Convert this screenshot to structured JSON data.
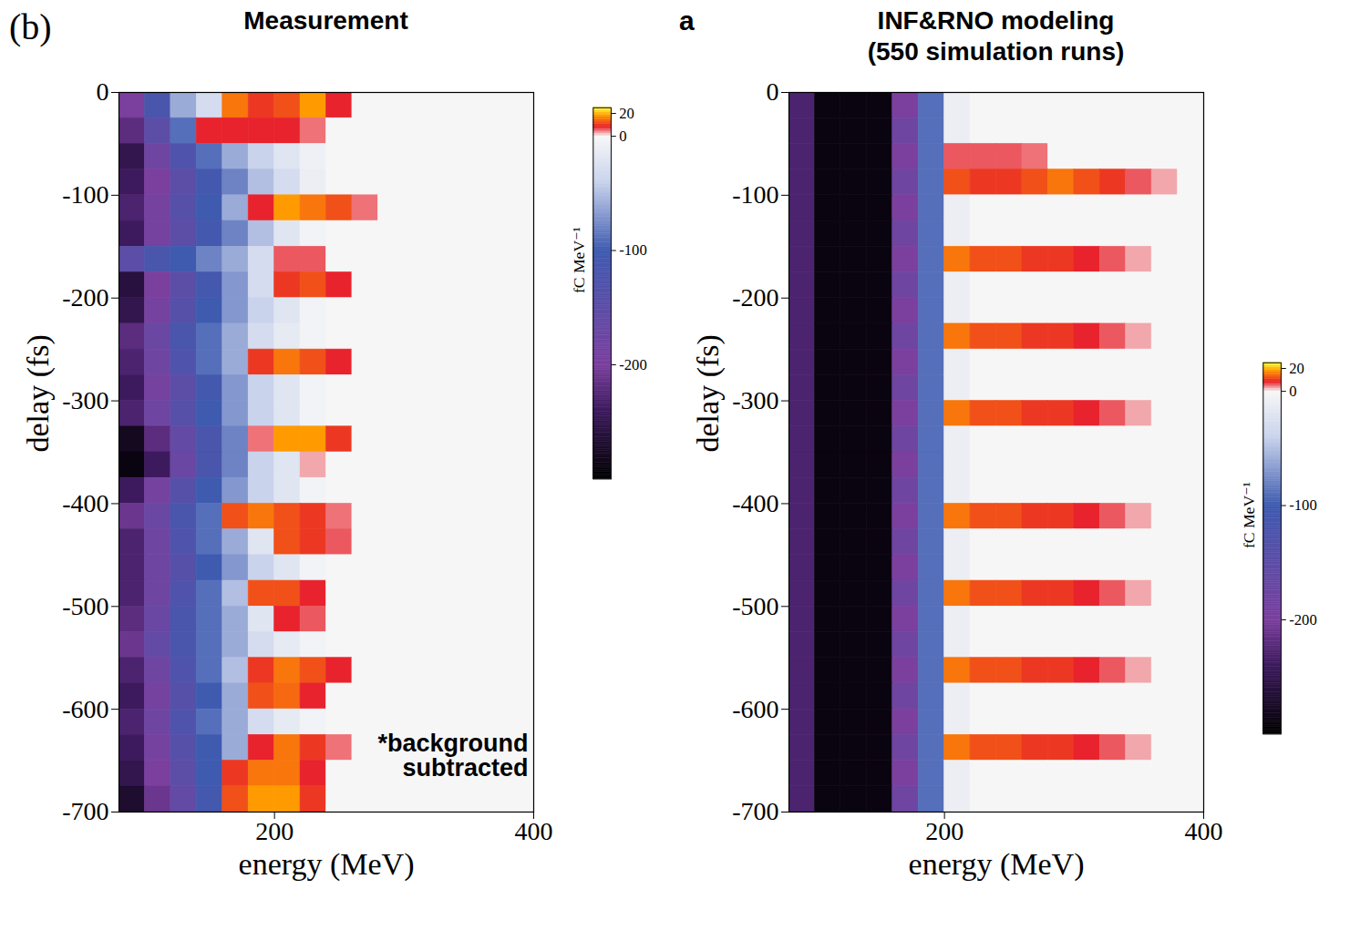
{
  "chart_data": [
    {
      "type": "heatmap",
      "title": "Measurement",
      "panel_label": "(b)",
      "annotation": "*background subtracted",
      "x_label": "energy (MeV)",
      "y_label": "delay (fs)",
      "xlim": [
        80,
        400
      ],
      "xticks": [
        200,
        400
      ],
      "ylim": [
        -700,
        0
      ],
      "yticks": [
        0,
        -100,
        -200,
        -300,
        -400,
        -500,
        -600,
        -700
      ],
      "x_bins": [
        80,
        100,
        120,
        140,
        160,
        180,
        200,
        220,
        240,
        260,
        280,
        300,
        320,
        340,
        360,
        380,
        400
      ],
      "y_bins": [
        0,
        -25,
        -50,
        -75,
        -100,
        -125,
        -150,
        -175,
        -200,
        -225,
        -250,
        -275,
        -300,
        -325,
        -350,
        -375,
        -400,
        -425,
        -450,
        -475,
        -500,
        -525,
        -550,
        -575,
        -600,
        -625,
        -650,
        -675,
        -700
      ],
      "z": [
        [
          -200,
          -120,
          -60,
          -30,
          15,
          10,
          12,
          18,
          8,
          0,
          0,
          0,
          0,
          0,
          0,
          0
        ],
        [
          -220,
          -150,
          -90,
          8,
          8,
          8,
          8,
          5,
          0,
          0,
          0,
          0,
          0,
          0,
          0,
          0
        ],
        [
          -250,
          -180,
          -130,
          -90,
          -60,
          -40,
          -20,
          -8,
          0,
          0,
          0,
          0,
          0,
          0,
          0,
          0
        ],
        [
          -240,
          -200,
          -150,
          -110,
          -80,
          -50,
          -30,
          -10,
          0,
          0,
          0,
          0,
          0,
          0,
          0,
          0
        ],
        [
          -230,
          -190,
          -140,
          -100,
          -60,
          8,
          18,
          15,
          12,
          5,
          0,
          0,
          0,
          0,
          0,
          0
        ],
        [
          -240,
          -190,
          -150,
          -110,
          -80,
          -50,
          -20,
          -5,
          0,
          0,
          0,
          0,
          0,
          0,
          0,
          0
        ],
        [
          -150,
          -120,
          -100,
          -80,
          -60,
          -30,
          6,
          6,
          0,
          0,
          0,
          0,
          0,
          0,
          0,
          0
        ],
        [
          -260,
          -200,
          -150,
          -110,
          -70,
          -30,
          10,
          12,
          8,
          0,
          0,
          0,
          0,
          0,
          0,
          0
        ],
        [
          -250,
          -190,
          -140,
          -100,
          -70,
          -40,
          -20,
          -5,
          0,
          0,
          0,
          0,
          0,
          0,
          0,
          0
        ],
        [
          -220,
          -170,
          -120,
          -90,
          -60,
          -30,
          -15,
          -5,
          0,
          0,
          0,
          0,
          0,
          0,
          0,
          0
        ],
        [
          -230,
          -180,
          -130,
          -90,
          -60,
          10,
          15,
          12,
          8,
          0,
          0,
          0,
          0,
          0,
          0,
          0
        ],
        [
          -240,
          -190,
          -150,
          -110,
          -70,
          -40,
          -20,
          -5,
          0,
          0,
          0,
          0,
          0,
          0,
          0,
          0
        ],
        [
          -230,
          -180,
          -140,
          -100,
          -70,
          -40,
          -20,
          -5,
          0,
          0,
          0,
          0,
          0,
          0,
          0,
          0
        ],
        [
          -280,
          -220,
          -160,
          -120,
          -80,
          5,
          18,
          18,
          10,
          0,
          0,
          0,
          0,
          0,
          0,
          0
        ],
        [
          -290,
          -240,
          -170,
          -120,
          -80,
          -40,
          -20,
          3,
          0,
          0,
          0,
          0,
          0,
          0,
          0,
          0
        ],
        [
          -240,
          -190,
          -140,
          -100,
          -70,
          -40,
          -20,
          -5,
          0,
          0,
          0,
          0,
          0,
          0,
          0,
          0
        ],
        [
          -210,
          -170,
          -120,
          -90,
          12,
          15,
          12,
          10,
          5,
          0,
          0,
          0,
          0,
          0,
          0,
          0
        ],
        [
          -230,
          -180,
          -130,
          -90,
          -60,
          -20,
          12,
          10,
          6,
          0,
          0,
          0,
          0,
          0,
          0,
          0
        ],
        [
          -230,
          -180,
          -140,
          -100,
          -70,
          -40,
          -20,
          -5,
          0,
          0,
          0,
          0,
          0,
          0,
          0,
          0
        ],
        [
          -230,
          -180,
          -130,
          -90,
          -50,
          12,
          12,
          8,
          0,
          0,
          0,
          0,
          0,
          0,
          0,
          0
        ],
        [
          -220,
          -170,
          -120,
          -90,
          -60,
          -20,
          8,
          6,
          0,
          0,
          0,
          0,
          0,
          0,
          0,
          0
        ],
        [
          -210,
          -160,
          -120,
          -90,
          -60,
          -30,
          -15,
          -5,
          0,
          0,
          0,
          0,
          0,
          0,
          0,
          0
        ],
        [
          -230,
          -180,
          -130,
          -90,
          -50,
          10,
          15,
          12,
          8,
          0,
          0,
          0,
          0,
          0,
          0,
          0
        ],
        [
          -240,
          -190,
          -140,
          -100,
          -60,
          12,
          14,
          8,
          0,
          0,
          0,
          0,
          0,
          0,
          0,
          0
        ],
        [
          -230,
          -180,
          -130,
          -90,
          -60,
          -30,
          -15,
          -5,
          0,
          0,
          0,
          0,
          0,
          0,
          0,
          0
        ],
        [
          -240,
          -190,
          -140,
          -100,
          -60,
          8,
          15,
          10,
          5,
          0,
          0,
          0,
          0,
          0,
          0,
          0
        ],
        [
          -250,
          -200,
          -150,
          -100,
          10,
          15,
          15,
          8,
          0,
          0,
          0,
          0,
          0,
          0,
          0,
          0
        ],
        [
          -270,
          -210,
          -160,
          -110,
          12,
          18,
          18,
          10,
          0,
          0,
          0,
          0,
          0,
          0,
          0,
          0
        ]
      ],
      "colorbar": {
        "label": "fC MeV⁻¹",
        "range": [
          -300,
          25
        ],
        "ticks": [
          20,
          0,
          -100,
          -200
        ]
      }
    },
    {
      "type": "heatmap",
      "title": "INF&RNO modeling (550 simulation runs)",
      "panel_label": "a",
      "x_label": "energy (MeV)",
      "y_label": "delay (fs)",
      "xlim": [
        80,
        400
      ],
      "xticks": [
        200,
        400
      ],
      "ylim": [
        -700,
        0
      ],
      "yticks": [
        0,
        -100,
        -200,
        -300,
        -400,
        -500,
        -600,
        -700
      ],
      "x_bins": [
        80,
        100,
        120,
        140,
        160,
        180,
        200,
        220,
        240,
        260,
        280,
        300,
        320,
        340,
        360,
        380,
        400
      ],
      "y_bins": [
        0,
        -25,
        -50,
        -75,
        -100,
        -125,
        -150,
        -175,
        -200,
        -225,
        -250,
        -275,
        -300,
        -325,
        -350,
        -375,
        -400,
        -425,
        -450,
        -475,
        -500,
        -525,
        -550,
        -575,
        -600,
        -625,
        -650,
        -675,
        -700
      ],
      "z": [
        [
          -230,
          -290,
          -290,
          -290,
          -200,
          -90,
          -10,
          0,
          0,
          0,
          0,
          0,
          0,
          0,
          0,
          0
        ],
        [
          -230,
          -290,
          -290,
          -290,
          -180,
          -90,
          -10,
          0,
          0,
          0,
          0,
          0,
          0,
          0,
          0,
          0
        ],
        [
          -230,
          -290,
          -290,
          -290,
          -200,
          -90,
          6,
          6,
          6,
          5,
          0,
          0,
          0,
          0,
          0,
          0
        ],
        [
          -230,
          -290,
          -290,
          -290,
          -180,
          -90,
          12,
          10,
          10,
          12,
          15,
          12,
          10,
          6,
          3,
          0
        ],
        [
          -230,
          -290,
          -290,
          -290,
          -200,
          -90,
          -10,
          0,
          0,
          0,
          0,
          0,
          0,
          0,
          0,
          0
        ],
        [
          -230,
          -290,
          -290,
          -290,
          -180,
          -90,
          -10,
          0,
          0,
          0,
          0,
          0,
          0,
          0,
          0,
          0
        ],
        [
          -230,
          -290,
          -290,
          -290,
          -200,
          -90,
          15,
          12,
          12,
          10,
          10,
          8,
          6,
          3,
          0,
          0
        ],
        [
          -230,
          -290,
          -290,
          -290,
          -180,
          -90,
          -10,
          0,
          0,
          0,
          0,
          0,
          0,
          0,
          0,
          0
        ],
        [
          -230,
          -290,
          -290,
          -290,
          -200,
          -90,
          -10,
          0,
          0,
          0,
          0,
          0,
          0,
          0,
          0,
          0
        ],
        [
          -230,
          -290,
          -290,
          -290,
          -180,
          -90,
          15,
          12,
          12,
          10,
          10,
          8,
          6,
          3,
          0,
          0
        ],
        [
          -230,
          -290,
          -290,
          -290,
          -200,
          -90,
          -10,
          0,
          0,
          0,
          0,
          0,
          0,
          0,
          0,
          0
        ],
        [
          -230,
          -290,
          -290,
          -290,
          -180,
          -90,
          -10,
          0,
          0,
          0,
          0,
          0,
          0,
          0,
          0,
          0
        ],
        [
          -230,
          -290,
          -290,
          -290,
          -200,
          -90,
          15,
          12,
          12,
          10,
          10,
          8,
          6,
          3,
          0,
          0
        ],
        [
          -230,
          -290,
          -290,
          -290,
          -180,
          -90,
          -10,
          0,
          0,
          0,
          0,
          0,
          0,
          0,
          0,
          0
        ],
        [
          -230,
          -290,
          -290,
          -290,
          -200,
          -90,
          -10,
          0,
          0,
          0,
          0,
          0,
          0,
          0,
          0,
          0
        ],
        [
          -230,
          -290,
          -290,
          -290,
          -180,
          -90,
          -10,
          0,
          0,
          0,
          0,
          0,
          0,
          0,
          0,
          0
        ],
        [
          -230,
          -290,
          -290,
          -290,
          -200,
          -90,
          15,
          12,
          12,
          10,
          10,
          8,
          6,
          3,
          0,
          0
        ],
        [
          -230,
          -290,
          -290,
          -290,
          -180,
          -90,
          -10,
          0,
          0,
          0,
          0,
          0,
          0,
          0,
          0,
          0
        ],
        [
          -230,
          -290,
          -290,
          -290,
          -200,
          -90,
          -10,
          0,
          0,
          0,
          0,
          0,
          0,
          0,
          0,
          0
        ],
        [
          -230,
          -290,
          -290,
          -290,
          -180,
          -90,
          15,
          12,
          12,
          10,
          10,
          8,
          6,
          3,
          0,
          0
        ],
        [
          -230,
          -290,
          -290,
          -290,
          -200,
          -90,
          -10,
          0,
          0,
          0,
          0,
          0,
          0,
          0,
          0,
          0
        ],
        [
          -230,
          -290,
          -290,
          -290,
          -180,
          -90,
          -10,
          0,
          0,
          0,
          0,
          0,
          0,
          0,
          0,
          0
        ],
        [
          -230,
          -290,
          -290,
          -290,
          -200,
          -90,
          15,
          12,
          12,
          10,
          10,
          8,
          6,
          3,
          0,
          0
        ],
        [
          -230,
          -290,
          -290,
          -290,
          -180,
          -90,
          -10,
          0,
          0,
          0,
          0,
          0,
          0,
          0,
          0,
          0
        ],
        [
          -230,
          -290,
          -290,
          -290,
          -200,
          -90,
          -10,
          0,
          0,
          0,
          0,
          0,
          0,
          0,
          0,
          0
        ],
        [
          -230,
          -290,
          -290,
          -290,
          -180,
          -90,
          15,
          12,
          12,
          10,
          10,
          8,
          6,
          3,
          0,
          0
        ],
        [
          -230,
          -290,
          -290,
          -290,
          -200,
          -90,
          -10,
          0,
          0,
          0,
          0,
          0,
          0,
          0,
          0,
          0
        ],
        [
          -230,
          -290,
          -290,
          -290,
          -180,
          -90,
          -10,
          0,
          0,
          0,
          0,
          0,
          0,
          0,
          0,
          0
        ]
      ],
      "colorbar": {
        "label": "fC MeV⁻¹",
        "range": [
          -300,
          25
        ],
        "ticks": [
          20,
          0,
          -100,
          -200
        ]
      }
    }
  ]
}
